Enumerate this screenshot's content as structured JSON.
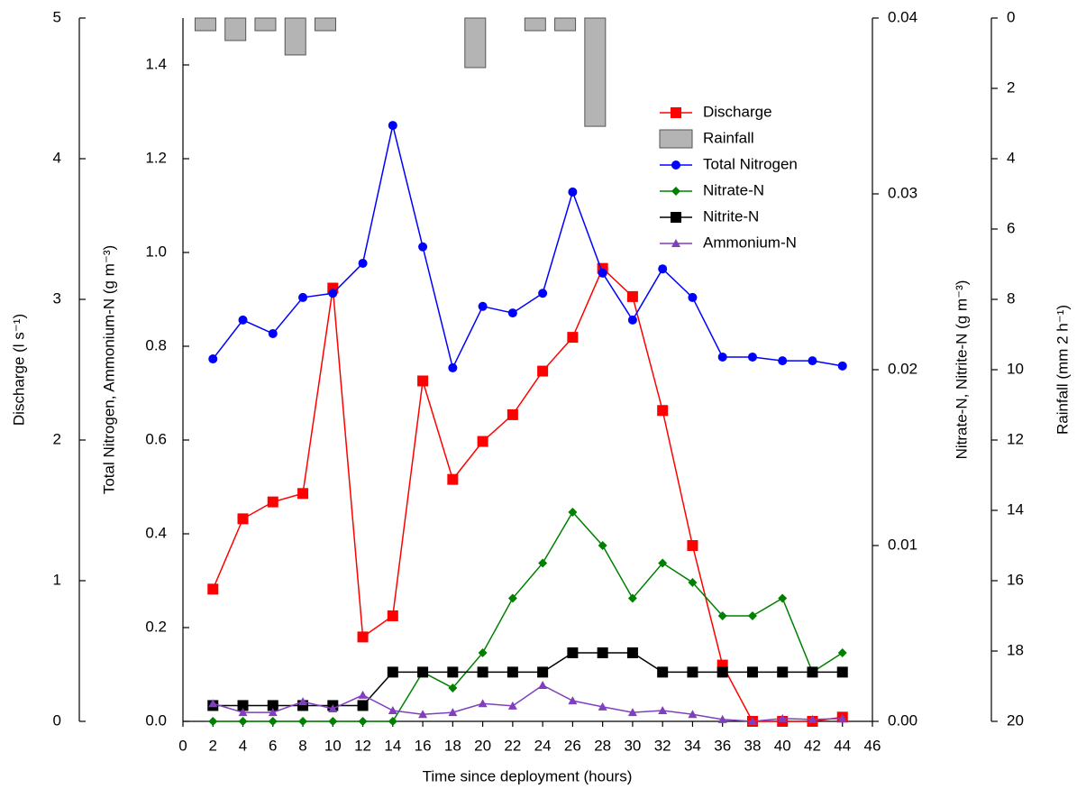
{
  "chart_data": {
    "type": "line",
    "xlabel": "Time since deployment (hours)",
    "ylabel": "Discharge (l s⁻¹)",
    "y2label": "Total Nitrogen, Ammonium-N (g m⁻³)",
    "y3label": "Nitrate-N, Nitrite-N (g m⁻³)",
    "y4label": "Rainfall (mm 2 h⁻¹)",
    "x": [
      2,
      4,
      6,
      8,
      10,
      12,
      14,
      16,
      18,
      20,
      22,
      24,
      26,
      28,
      30,
      32,
      34,
      36,
      38,
      40,
      42,
      44
    ],
    "xlim": [
      0,
      46
    ],
    "xticks": [
      0,
      2,
      4,
      6,
      8,
      10,
      12,
      14,
      16,
      18,
      20,
      22,
      24,
      26,
      28,
      30,
      32,
      34,
      36,
      38,
      40,
      42,
      44,
      46
    ],
    "ylim": [
      0,
      5
    ],
    "yticks": [
      0,
      1,
      2,
      3,
      4,
      5
    ],
    "y2lim": [
      0,
      1.5
    ],
    "y2ticks": [
      {
        "value": 0,
        "label": "0.0"
      },
      {
        "value": 0.2,
        "label": "0.2"
      },
      {
        "value": 0.4,
        "label": "0.4"
      },
      {
        "value": 0.6,
        "label": "0.6"
      },
      {
        "value": 0.8,
        "label": "0.8"
      },
      {
        "value": 1,
        "label": "1.0"
      },
      {
        "value": 1.2,
        "label": "1.2"
      },
      {
        "value": 1.4,
        "label": "1.4"
      }
    ],
    "y3lim": [
      0,
      0.04
    ],
    "y3ticks": [
      {
        "value": 0,
        "label": "0.00"
      },
      {
        "value": 0.01,
        "label": "0.01"
      },
      {
        "value": 0.02,
        "label": "0.02"
      },
      {
        "value": 0.03,
        "label": "0.03"
      },
      {
        "value": 0.04,
        "label": "0.04"
      }
    ],
    "y4lim": [
      20,
      0
    ],
    "y4ticks": [
      0,
      2,
      4,
      6,
      8,
      10,
      12,
      14,
      16,
      18,
      20
    ],
    "series": [
      {
        "name": "Discharge",
        "color": "#ff0000",
        "marker": "square",
        "axis": "y",
        "values": [
          0.94,
          1.44,
          1.56,
          1.62,
          3.08,
          0.6,
          0.75,
          2.42,
          1.72,
          1.99,
          2.18,
          2.49,
          2.73,
          3.22,
          3.02,
          2.21,
          1.25,
          0.4,
          0,
          0,
          0,
          0.03
        ]
      },
      {
        "name": "Rainfall",
        "color": "#b4b4b4",
        "type": "bar",
        "axis": "y4",
        "x": [
          1.5,
          3.5,
          5.5,
          7.5,
          9.5,
          19.5,
          23.5,
          25.5,
          27.5
        ],
        "values": [
          0.36,
          0.64,
          0.36,
          1.05,
          0.36,
          1.41,
          0.36,
          0.36,
          3.08
        ]
      },
      {
        "name": "Total Nitrogen",
        "color": "#0000ff",
        "marker": "circle",
        "axis": "y2",
        "values": [
          0.773,
          0.856,
          0.827,
          0.904,
          0.913,
          0.977,
          1.271,
          1.012,
          0.754,
          0.885,
          0.871,
          0.913,
          1.129,
          0.956,
          0.856,
          0.965,
          0.904,
          0.777,
          0.777,
          0.769,
          0.769,
          0.758
        ]
      },
      {
        "name": "Nitrate-N",
        "color": "#008000",
        "marker": "diamond",
        "axis": "y3",
        "values": [
          0,
          0,
          0,
          0,
          0,
          0,
          0,
          0.0028,
          0.0019,
          0.0039,
          0.007,
          0.009,
          0.0119,
          0.01,
          0.007,
          0.009,
          0.0079,
          0.006,
          0.006,
          0.007,
          0.0028,
          0.0039
        ]
      },
      {
        "name": "Nitrite-N",
        "color": "#000000",
        "marker": "square",
        "axis": "y3",
        "values": [
          0.0009,
          0.0009,
          0.0009,
          0.0009,
          0.0009,
          0.0009,
          0.0028,
          0.0028,
          0.0028,
          0.0028,
          0.0028,
          0.0028,
          0.0039,
          0.0039,
          0.0039,
          0.0028,
          0.0028,
          0.0028,
          0.0028,
          0.0028,
          0.0028,
          0.0028
        ]
      },
      {
        "name": "Ammonium-N",
        "color": "#7f3fbf",
        "marker": "triangle",
        "axis": "y2",
        "values": [
          0.038,
          0.019,
          0.019,
          0.042,
          0.027,
          0.056,
          0.023,
          0.015,
          0.019,
          0.038,
          0.033,
          0.077,
          0.044,
          0.031,
          0.019,
          0.023,
          0.015,
          0.004,
          0,
          0.006,
          0.004,
          0.006
        ]
      }
    ]
  }
}
